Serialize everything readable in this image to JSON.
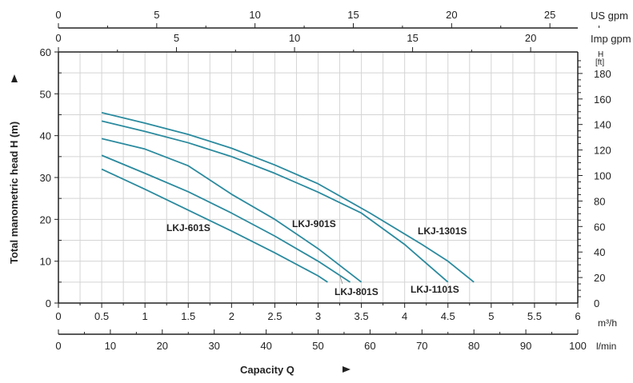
{
  "chart_data": {
    "type": "line",
    "title": "",
    "xlabel": "Capacity Q",
    "ylabel": "Total manometric head H (m)",
    "xlim": [
      0,
      6
    ],
    "ylim": [
      0,
      60
    ],
    "grid": true,
    "x_unit": "m³/h",
    "x_ticks": [
      "0",
      "0.5",
      "1",
      "1.5",
      "2",
      "2.5",
      "3",
      "3.5",
      "4",
      "4.5",
      "5",
      "5.5",
      "6"
    ],
    "y_ticks": [
      "0",
      "10",
      "20",
      "30",
      "40",
      "50",
      "60"
    ],
    "secondary_axes": {
      "us_gpm": {
        "label": "US gpm",
        "ticks": [
          "0",
          "5",
          "10",
          "15",
          "20",
          "25"
        ]
      },
      "imp_gpm": {
        "label": "Imp gpm",
        "ticks": [
          "0",
          "5",
          "10",
          "15",
          "20"
        ]
      },
      "lmin": {
        "label": "l/min",
        "ticks": [
          "0",
          "10",
          "20",
          "30",
          "40",
          "50",
          "60",
          "70",
          "80",
          "90",
          "100"
        ]
      },
      "ft": {
        "label_top": "H",
        "label_unit": "[ft]",
        "ticks": [
          "0",
          "20",
          "40",
          "60",
          "80",
          "100",
          "120",
          "140",
          "160",
          "180"
        ]
      }
    },
    "series": [
      {
        "name": "LKJ-601S",
        "x": [
          0.5,
          1,
          1.5,
          2,
          2.5,
          3,
          3.11
        ],
        "y": [
          32,
          27.2,
          22.2,
          17.2,
          12,
          6.5,
          5
        ]
      },
      {
        "name": "LKJ-801S",
        "x": [
          0.5,
          1,
          1.5,
          2,
          2.5,
          3,
          3.37
        ],
        "y": [
          35.3,
          31,
          26.6,
          21.5,
          16,
          10,
          5
        ]
      },
      {
        "name": "LKJ-901S",
        "x": [
          0.5,
          1,
          1.5,
          2,
          2.5,
          3,
          3.5
        ],
        "y": [
          39.3,
          36.8,
          32.8,
          26,
          20,
          13,
          5
        ]
      },
      {
        "name": "LKJ-1101S",
        "x": [
          0.5,
          1,
          1.5,
          2,
          2.5,
          3,
          3.5,
          4,
          4.25,
          4.5
        ],
        "y": [
          43.5,
          41,
          38.3,
          35,
          31,
          26.5,
          21.5,
          14,
          9.5,
          5
        ]
      },
      {
        "name": "LKJ-1301S",
        "x": [
          0.5,
          1,
          1.5,
          2,
          2.5,
          3,
          3.6,
          4.2,
          4.5,
          4.8
        ],
        "y": [
          45.5,
          43,
          40.3,
          37,
          33,
          28.5,
          21.5,
          14,
          10,
          5
        ]
      }
    ],
    "series_color": "#2a8a9e"
  }
}
